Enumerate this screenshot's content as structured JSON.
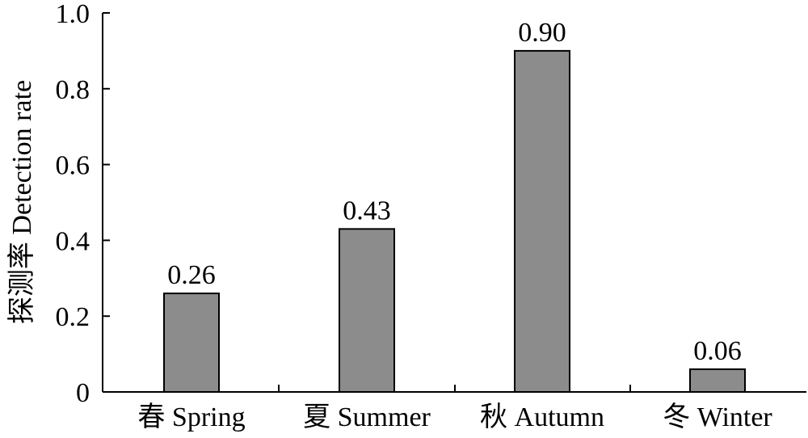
{
  "chart_data": {
    "type": "bar",
    "categories": [
      "春 Spring",
      "夏 Summer",
      "秋 Autumn",
      "冬 Winter"
    ],
    "values": [
      0.26,
      0.43,
      0.9,
      0.06
    ],
    "value_labels": [
      "0.26",
      "0.43",
      "0.90",
      "0.06"
    ],
    "ylabel": "探测率 Detection rate",
    "xlabel": "",
    "ylim": [
      0,
      1.0
    ],
    "yticks": [
      0,
      0.2,
      0.4,
      0.6,
      0.8,
      1.0
    ],
    "ytick_labels": [
      "0",
      "0.2",
      "0.4",
      "0.6",
      "0.8",
      "1.0"
    ],
    "grid": false,
    "bar_color": "#8c8c8c",
    "axis_color": "#000000"
  }
}
